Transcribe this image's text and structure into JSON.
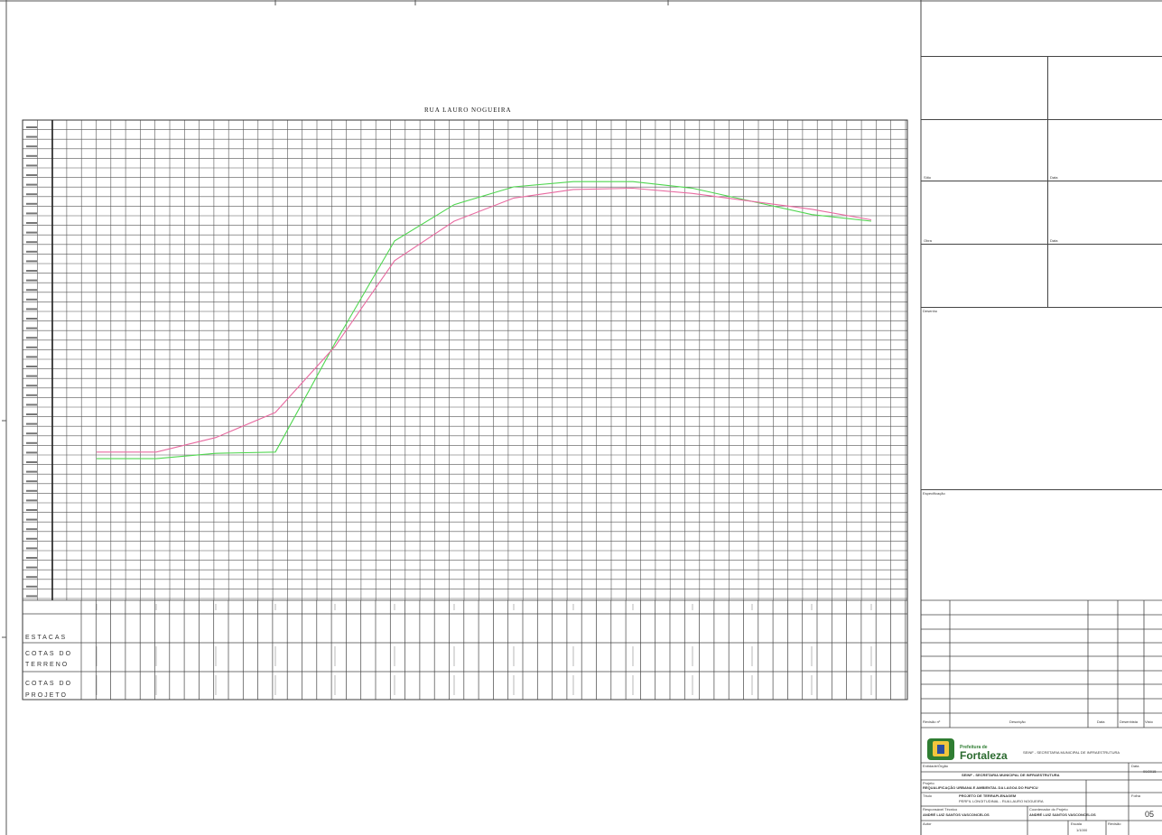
{
  "drawing": {
    "title": "RUA LAURO NOGUEIRA",
    "row_labels": {
      "estacas": "ESTACAS",
      "cotas_terreno_1": "COTAS DO",
      "cotas_terreno_2": "TERRENO",
      "cotas_projeto_1": "COTAS DO",
      "cotas_projeto_2": "PROJETO"
    }
  },
  "title_block": {
    "field_1": "Sítio",
    "field_2": "Data",
    "field_3": "Obra",
    "field_4": "Data",
    "desenho": "Desenho",
    "especificacao": "Especificação",
    "rev_header": [
      "Revisão nº",
      "Descrição",
      "Data",
      "Desenhista",
      "Visto"
    ],
    "logo_line1": "Prefeitura de",
    "logo_line2": "Fortaleza",
    "org_name": "SEINF - SECRETARIA MUNICIPAL DE INFRAESTRUTURA",
    "entidade_label": "Entidade/Órgão",
    "entidade_value": "SEINF - SECRETARIA MUNICIPAL DE INFRAESTRUTURA",
    "projeto_label": "Projeto",
    "projeto_value": "REQUALIFICAÇÃO URBANA E AMBIENTAL DA LAGOA DO PAPICU",
    "titulo_label": "Título",
    "titulo_value": "PROJETO DE TERRAPLENAGEM",
    "titulo_sub": "PERFIL LONGITUDINAL - RUA LAURO NOGUEIRA",
    "resp_label": "Responsável Técnico",
    "resp_value": "ANDRÉ LUIZ SANTOS VASCONCELOS",
    "coord_label": "Coordenador do Projeto",
    "coord_value": "ANDRÉ LUIZ SANTOS VASCONCELOS",
    "autor_label": "Autor",
    "escala_label": "Escala",
    "escala_value": "1/1000",
    "folha_label": "Folha",
    "folha_value": "05",
    "revisao_label": "Revisão",
    "data_label": "Data",
    "data_value": "09/2015"
  },
  "chart_data": {
    "type": "line",
    "title": "RUA LAURO NOGUEIRA",
    "xlabel": "ESTACAS",
    "ylabel": "",
    "x": [
      0,
      1,
      2,
      3,
      4,
      5,
      6,
      7,
      8,
      9,
      10,
      11,
      12,
      13
    ],
    "series": [
      {
        "name": "TERRENO",
        "values": [
          16.0,
          16.0,
          16.8,
          17.0,
          33.5,
          49.0,
          54.5,
          57.2,
          58.0,
          58.0,
          57.0,
          55.0,
          53.0,
          52.0
        ]
      },
      {
        "name": "PROJETO",
        "values": [
          17.0,
          17.0,
          19.2,
          23.0,
          33.0,
          46.0,
          52.0,
          55.5,
          56.8,
          57.0,
          56.2,
          55.0,
          53.8,
          52.2
        ]
      }
    ],
    "ylim": [
      0,
      65
    ],
    "grid": true,
    "legend": "none"
  }
}
